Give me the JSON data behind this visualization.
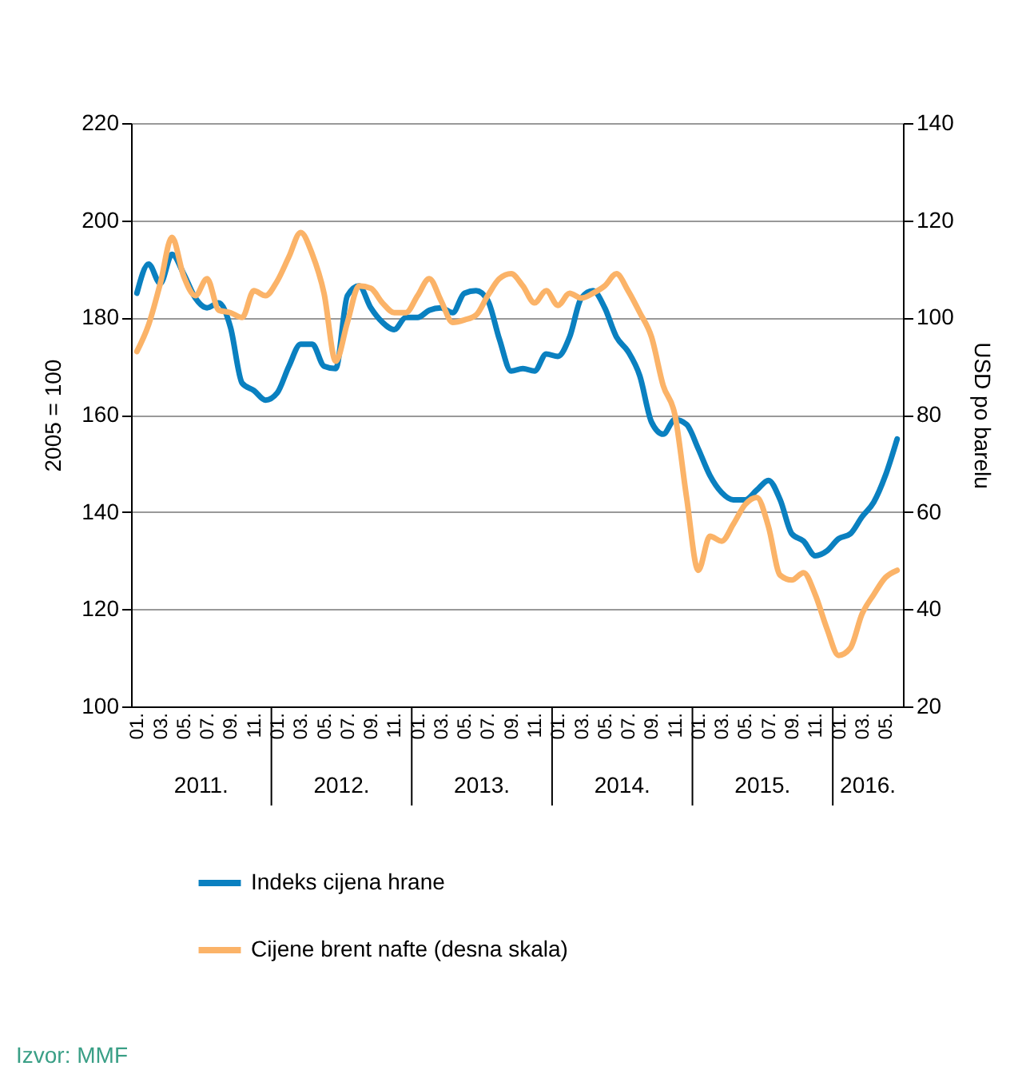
{
  "chart_data": {
    "type": "line",
    "categories": [
      "01.",
      null,
      "03.",
      null,
      "05.",
      null,
      "07.",
      null,
      "09.",
      null,
      "11.",
      null,
      "01.",
      null,
      "03.",
      null,
      "05.",
      null,
      "07.",
      null,
      "09.",
      null,
      "11.",
      null,
      "01.",
      null,
      "03.",
      null,
      "05.",
      null,
      "07.",
      null,
      "09.",
      null,
      "11.",
      null,
      "01.",
      null,
      "03.",
      null,
      "05.",
      null,
      "07.",
      null,
      "09.",
      null,
      "11.",
      null,
      "01.",
      null,
      "03.",
      null,
      "05.",
      null,
      "07.",
      null,
      "09.",
      null,
      "11.",
      null,
      "01.",
      null,
      "03.",
      null,
      "05.",
      null
    ],
    "series": [
      {
        "name": "Indeks cijena hrane",
        "color": "#0a80c0",
        "values": [
          185,
          191,
          187,
          193,
          189,
          184,
          182,
          183,
          178,
          166.5,
          165,
          163,
          164.5,
          170,
          174.5,
          174.5,
          170,
          169.5,
          184.5,
          186.5,
          182,
          179,
          177.5,
          180,
          180,
          181.5,
          182,
          181,
          185,
          185.5,
          183.5,
          175.5,
          169,
          169.5,
          169,
          172.5,
          172,
          176,
          184,
          185.5,
          182,
          176,
          173,
          168,
          158.5,
          156,
          159,
          158,
          153,
          147.5,
          144,
          142.5,
          142.5,
          144.5,
          146.5,
          142.5,
          135.5,
          134,
          131,
          132,
          134.5,
          135.5,
          139,
          142,
          147.5,
          155
        ]
      },
      {
        "name": "Cijene brent nafte (desna skala)",
        "color": "#fbb368",
        "axis": "y2",
        "values": [
          93,
          98.5,
          107,
          116.5,
          108.5,
          104.5,
          108,
          101.5,
          101,
          100,
          105.5,
          104.5,
          107.5,
          112.5,
          117.5,
          113,
          105,
          91,
          99,
          106.5,
          106,
          103,
          101,
          101,
          104.5,
          108,
          103.5,
          99,
          99.5,
          100.5,
          104.5,
          108,
          109,
          106.5,
          103,
          105.5,
          102.5,
          105,
          104,
          105,
          106.5,
          109,
          105.5,
          101,
          96,
          86,
          80,
          63,
          48,
          55,
          54,
          57.5,
          61.5,
          63,
          57,
          47,
          46,
          47.5,
          43,
          36,
          30.5,
          32,
          39,
          43,
          46.5,
          48
        ]
      }
    ],
    "ylim": [
      100,
      220
    ],
    "yticks": [
      100,
      120,
      140,
      160,
      180,
      200,
      220
    ],
    "y2lim": [
      20,
      140
    ],
    "y2ticks": [
      20,
      40,
      60,
      80,
      100,
      120,
      140
    ],
    "ylabel": "2005 = 100",
    "y2label": "USD po barelu",
    "grid": "y",
    "legend": "bottom",
    "annotations": [
      "2011.",
      "2012.",
      "2013.",
      "2014.",
      "2015.",
      "2016.",
      "Izvor: MMF"
    ]
  }
}
